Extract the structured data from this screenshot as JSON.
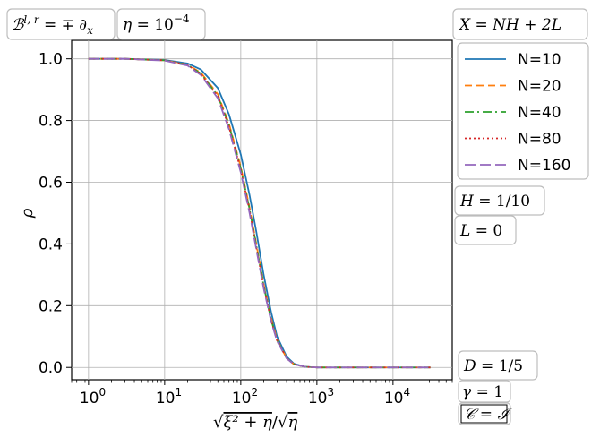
{
  "chart_data": {
    "type": "line",
    "xlabel": "√(ξ² + η)/√η",
    "ylabel": "ρ",
    "xscale": "log",
    "xlim": [
      0.6,
      60000
    ],
    "ylim": [
      -0.04,
      1.06
    ],
    "grid": true,
    "x_ticks": [
      {
        "label_base": "10",
        "label_exp": "0",
        "value": 1
      },
      {
        "label_base": "10",
        "label_exp": "1",
        "value": 10
      },
      {
        "label_base": "10",
        "label_exp": "2",
        "value": 100
      },
      {
        "label_base": "10",
        "label_exp": "3",
        "value": 1000
      },
      {
        "label_base": "10",
        "label_exp": "4",
        "value": 10000
      }
    ],
    "y_ticks": [
      {
        "label": "0.0",
        "value": 0.0
      },
      {
        "label": "0.2",
        "value": 0.2
      },
      {
        "label": "0.4",
        "value": 0.4
      },
      {
        "label": "0.6",
        "value": 0.6
      },
      {
        "label": "0.8",
        "value": 0.8
      },
      {
        "label": "1.0",
        "value": 1.0
      }
    ],
    "legend_title": "X = NH + 2L",
    "legend_position": "outside right",
    "annotations_top": [
      "ℬ^{l,r} = ∓∂ₓ",
      "η = 10⁻⁴"
    ],
    "annotations_right": [
      "H = 1/10",
      "L = 0"
    ],
    "annotations_bottom_right": [
      "D = 1/5",
      "γ = 1",
      "𝒞 = ℐ"
    ],
    "series": [
      {
        "name": "N=10",
        "color": "#1f77b4",
        "dash": "solid",
        "points": [
          [
            1,
            1.0
          ],
          [
            3,
            1.0
          ],
          [
            10,
            0.996
          ],
          [
            20,
            0.985
          ],
          [
            30,
            0.965
          ],
          [
            50,
            0.905
          ],
          [
            70,
            0.82
          ],
          [
            100,
            0.69
          ],
          [
            130,
            0.56
          ],
          [
            160,
            0.44
          ],
          [
            200,
            0.3
          ],
          [
            250,
            0.18
          ],
          [
            300,
            0.1
          ],
          [
            400,
            0.035
          ],
          [
            500,
            0.012
          ],
          [
            700,
            0.002
          ],
          [
            1000,
            0.0
          ],
          [
            10000,
            0.0
          ],
          [
            31000,
            0.0
          ]
        ]
      },
      {
        "name": "N=20",
        "color": "#ff7f0e",
        "dash": "8,5",
        "points": [
          [
            1,
            1.0
          ],
          [
            3,
            1.0
          ],
          [
            10,
            0.995
          ],
          [
            20,
            0.981
          ],
          [
            30,
            0.955
          ],
          [
            50,
            0.885
          ],
          [
            70,
            0.79
          ],
          [
            100,
            0.65
          ],
          [
            130,
            0.52
          ],
          [
            160,
            0.4
          ],
          [
            200,
            0.27
          ],
          [
            250,
            0.16
          ],
          [
            300,
            0.09
          ],
          [
            400,
            0.03
          ],
          [
            500,
            0.01
          ],
          [
            700,
            0.002
          ],
          [
            1000,
            0.0
          ],
          [
            10000,
            0.0
          ],
          [
            31000,
            0.0
          ]
        ]
      },
      {
        "name": "N=40",
        "color": "#2ca02c",
        "dash": "10,4,2,4",
        "points": [
          [
            1,
            1.0
          ],
          [
            3,
            1.0
          ],
          [
            10,
            0.995
          ],
          [
            20,
            0.98
          ],
          [
            30,
            0.952
          ],
          [
            50,
            0.88
          ],
          [
            70,
            0.785
          ],
          [
            100,
            0.645
          ],
          [
            130,
            0.515
          ],
          [
            160,
            0.395
          ],
          [
            200,
            0.265
          ],
          [
            250,
            0.155
          ],
          [
            300,
            0.088
          ],
          [
            400,
            0.03
          ],
          [
            500,
            0.01
          ],
          [
            700,
            0.002
          ],
          [
            1000,
            0.0
          ],
          [
            10000,
            0.0
          ],
          [
            31000,
            0.0
          ]
        ]
      },
      {
        "name": "N=80",
        "color": "#d62728",
        "dash": "2,3",
        "points": [
          [
            1,
            1.0
          ],
          [
            3,
            1.0
          ],
          [
            10,
            0.995
          ],
          [
            20,
            0.98
          ],
          [
            30,
            0.95
          ],
          [
            50,
            0.878
          ],
          [
            70,
            0.78
          ],
          [
            100,
            0.64
          ],
          [
            130,
            0.51
          ],
          [
            160,
            0.39
          ],
          [
            200,
            0.262
          ],
          [
            250,
            0.153
          ],
          [
            300,
            0.087
          ],
          [
            400,
            0.03
          ],
          [
            500,
            0.01
          ],
          [
            700,
            0.002
          ],
          [
            1000,
            0.0
          ],
          [
            10000,
            0.0
          ],
          [
            31000,
            0.0
          ]
        ]
      },
      {
        "name": "N=160",
        "color": "#9467bd",
        "dash": "12,5",
        "points": [
          [
            1,
            1.0
          ],
          [
            3,
            1.0
          ],
          [
            10,
            0.994
          ],
          [
            20,
            0.978
          ],
          [
            30,
            0.947
          ],
          [
            50,
            0.872
          ],
          [
            70,
            0.772
          ],
          [
            100,
            0.632
          ],
          [
            130,
            0.502
          ],
          [
            160,
            0.383
          ],
          [
            200,
            0.256
          ],
          [
            250,
            0.15
          ],
          [
            300,
            0.085
          ],
          [
            400,
            0.029
          ],
          [
            500,
            0.01
          ],
          [
            700,
            0.002
          ],
          [
            1000,
            0.0
          ],
          [
            10000,
            0.0
          ],
          [
            31000,
            0.0
          ]
        ]
      }
    ]
  }
}
